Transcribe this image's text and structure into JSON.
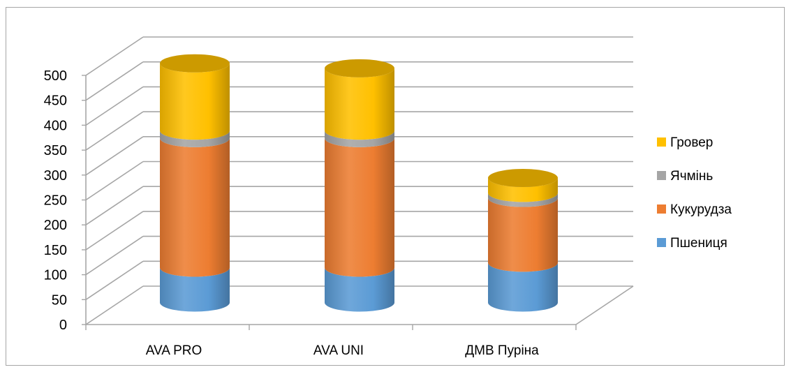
{
  "chart_data": {
    "type": "bar",
    "stacked": true,
    "three_d": true,
    "categories": [
      "AVA PRO",
      "AVA UNI",
      "ДМВ Пуріна"
    ],
    "series": [
      {
        "name": "Пшениця",
        "values": [
          70,
          70,
          80
        ],
        "color": "#5b9bd5"
      },
      {
        "name": "Кукурудза",
        "values": [
          260,
          260,
          130
        ],
        "color": "#ed7d31"
      },
      {
        "name": "Ячмінь",
        "values": [
          15,
          15,
          10
        ],
        "color": "#a5a5a5"
      },
      {
        "name": "Гровер",
        "values": [
          135,
          125,
          30
        ],
        "color": "#ffc000"
      }
    ],
    "ylim": [
      0,
      500
    ],
    "yticks": [
      "0",
      "50",
      "100",
      "150",
      "200",
      "250",
      "300",
      "350",
      "400",
      "450",
      "500"
    ],
    "title": "",
    "xlabel": "",
    "ylabel": "",
    "grid": true,
    "legend_position": "right"
  }
}
